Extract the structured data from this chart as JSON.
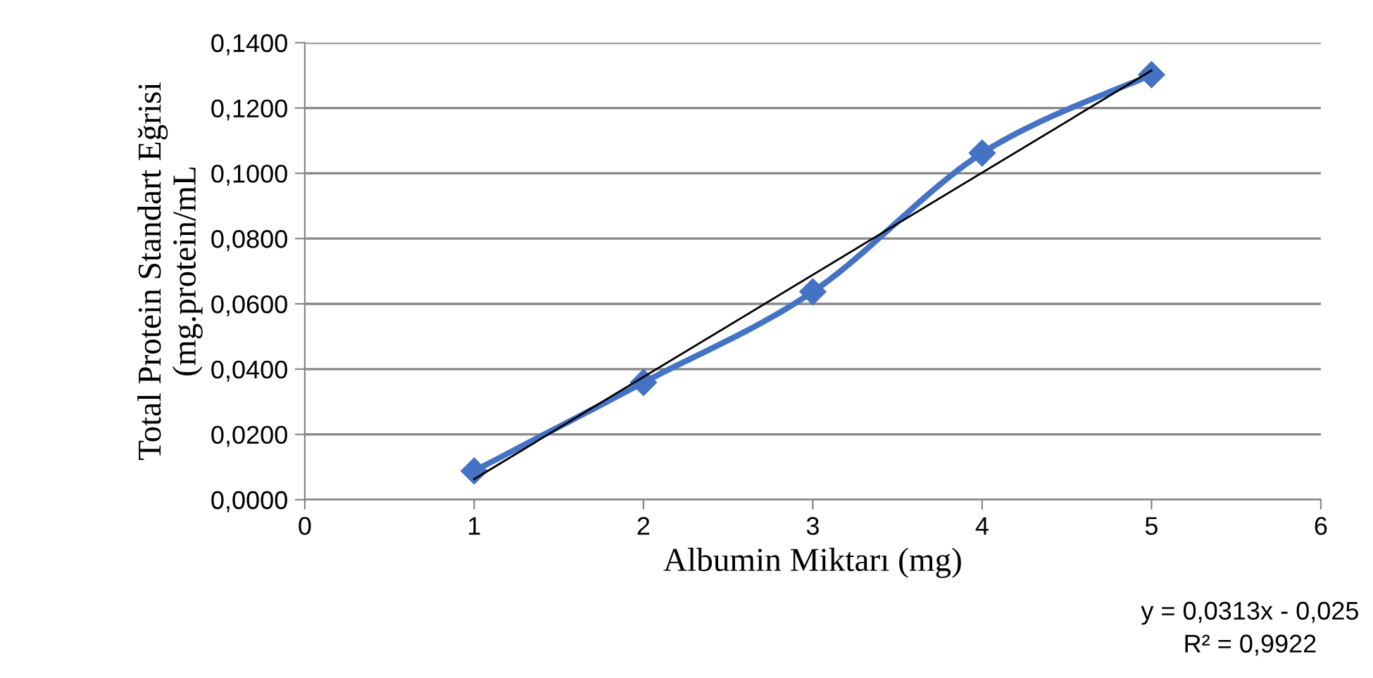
{
  "chart_data": {
    "type": "line",
    "ylabel": "Total Protein Standart Eğrisi\n(mg.protein/mL",
    "xlabel": "Albumin Miktarı (mg)",
    "x": [
      1,
      2,
      3,
      4,
      5
    ],
    "series": [
      {
        "color": "#4472c4",
        "values": [
          0.0088,
          0.0359,
          0.0637,
          0.1062,
          0.1302
        ],
        "marker": "diamond"
      },
      {
        "type": "line",
        "color": "#000000",
        "x": [
          1,
          5
        ],
        "values": [
          0.0063,
          0.1315
        ],
        "marker": "none"
      }
    ],
    "xlim": [
      0,
      6
    ],
    "xticks": [
      0,
      1,
      2,
      3,
      4,
      5,
      6
    ],
    "ylim": [
      0,
      0.14
    ],
    "yticks": [
      {
        "value": 0,
        "label": "0,0000"
      },
      {
        "value": 0.02,
        "label": "0,0200"
      },
      {
        "value": 0.04,
        "label": "0,0400"
      },
      {
        "value": 0.06,
        "label": "0,0600"
      },
      {
        "value": 0.08,
        "label": "0,0800"
      },
      {
        "value": 0.1,
        "label": "0,1000"
      },
      {
        "value": 0.12,
        "label": "0,1200"
      },
      {
        "value": 0.14,
        "label": "0,1400"
      }
    ],
    "grid": "y",
    "legend": false,
    "annotations": [
      "y = 0,0313x - 0,025\nR² = 0,9922"
    ]
  }
}
